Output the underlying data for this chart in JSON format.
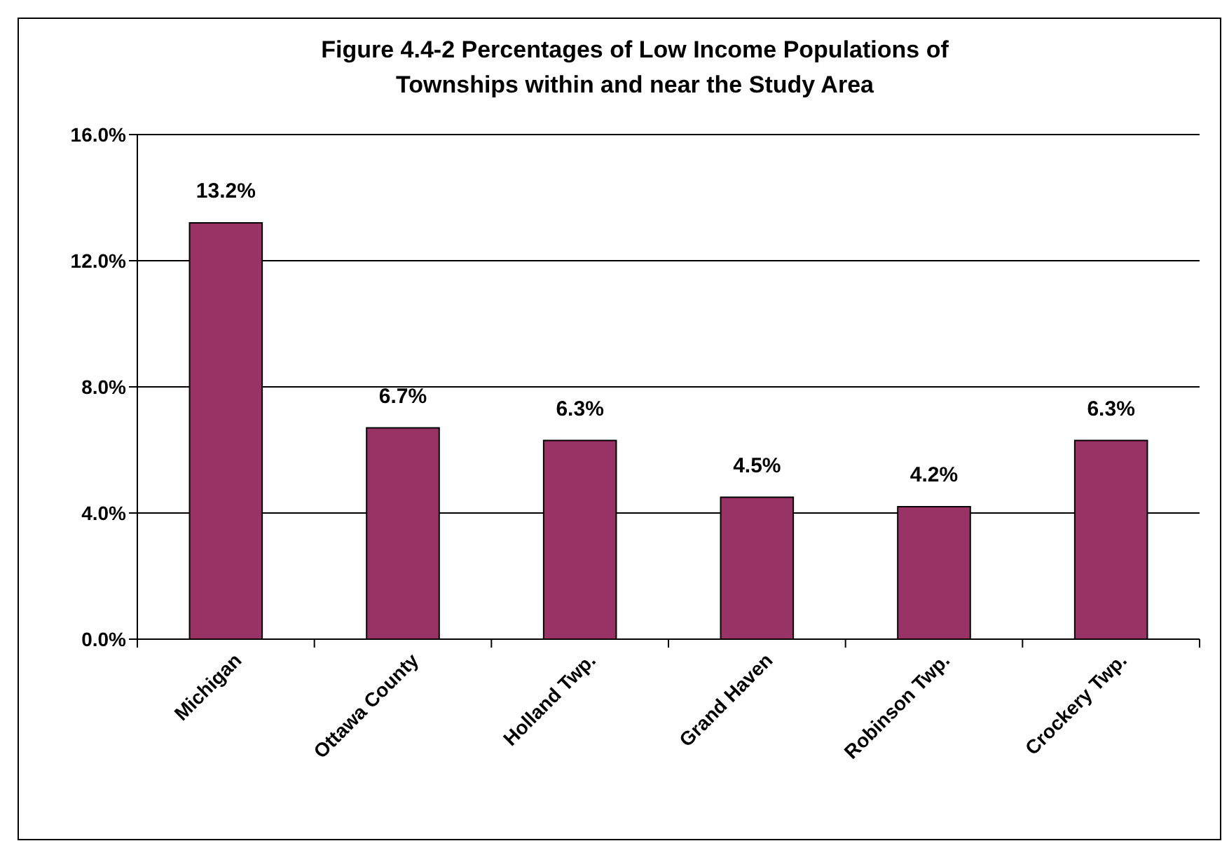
{
  "chart_data": {
    "type": "bar",
    "title": "Figure 4.4-2 Percentages of Low Income Populations of Townships within and near the Study Area",
    "categories": [
      "Michigan",
      "Ottawa County",
      "Holland Twp.",
      "Grand Haven",
      "Robinson Twp.",
      "Crockery Twp."
    ],
    "values": [
      13.2,
      6.7,
      6.3,
      4.5,
      4.2,
      6.3
    ],
    "value_labels": [
      "13.2%",
      "6.7%",
      "6.3%",
      "4.5%",
      "4.2%",
      "6.3%"
    ],
    "color": "#993366",
    "ylim": [
      0,
      16
    ],
    "yticks": [
      {
        "value": 0,
        "label": "0.0%"
      },
      {
        "value": 4,
        "label": "4.0%"
      },
      {
        "value": 8,
        "label": "8.0%"
      },
      {
        "value": 12,
        "label": "12.0%"
      },
      {
        "value": 16,
        "label": "16.0%"
      }
    ],
    "grid": "y"
  }
}
